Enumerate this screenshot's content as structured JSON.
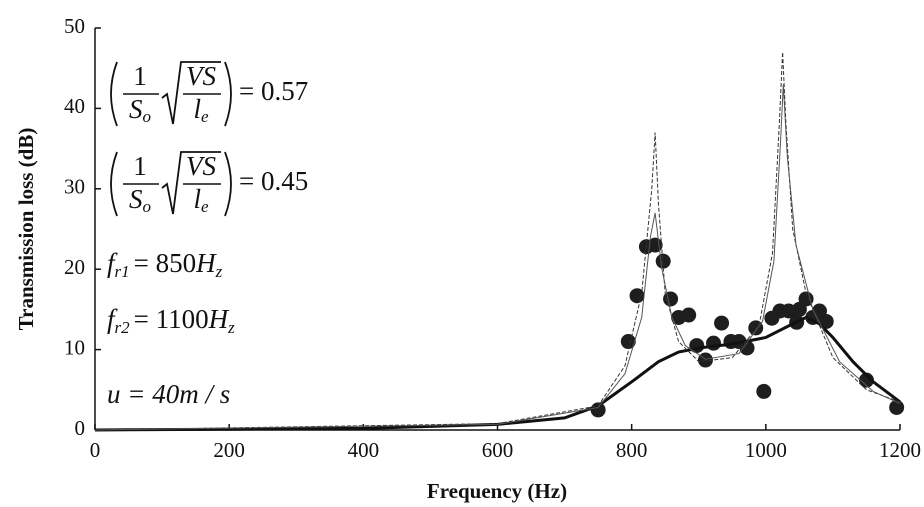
{
  "chart_data": {
    "type": "line",
    "xlabel": "Frequency (Hz)",
    "ylabel": "Transmission loss (dB)",
    "xlim": [
      0,
      1200
    ],
    "xticks": [
      0,
      200,
      400,
      600,
      800,
      1000,
      1200
    ],
    "ylim": [
      0,
      50
    ],
    "yticks": [
      0,
      10,
      20,
      30,
      40,
      50
    ],
    "grid": false,
    "annotations": [
      {
        "numerator": "1",
        "denominator": "S",
        "denominator_sub": "o",
        "root_numerator": "VS",
        "root_denominator": "l",
        "root_denominator_sub": "e",
        "rhs": "= 0.57"
      },
      {
        "numerator": "1",
        "denominator": "S",
        "denominator_sub": "o",
        "root_numerator": "VS",
        "root_denominator": "l",
        "root_denominator_sub": "e",
        "rhs": "= 0.45"
      },
      {
        "symbol": "f",
        "sub": "r1",
        "rhs": "= 850",
        "unit": "H",
        "unit_sub": "z"
      },
      {
        "symbol": "f",
        "sub": "r2",
        "rhs": "= 1100",
        "unit": "H",
        "unit_sub": "z"
      },
      {
        "text": "u = 40m / s"
      }
    ],
    "series": [
      {
        "style": "scatter",
        "color": "#1e1e1e",
        "x": [
          750,
          795,
          808,
          822,
          835,
          847,
          858,
          870,
          885,
          897,
          910,
          922,
          934,
          948,
          960,
          972,
          985,
          997,
          1009,
          1021,
          1034,
          1046,
          1050,
          1060,
          1070,
          1080,
          1090,
          1150,
          1195
        ],
        "values": [
          2.5,
          11,
          16.7,
          22.8,
          23,
          21,
          16.3,
          14,
          14.3,
          10.5,
          8.7,
          10.8,
          13.3,
          11,
          11,
          10.2,
          12.7,
          4.8,
          13.9,
          14.8,
          14.8,
          13.4,
          15,
          16.3,
          14,
          14.8,
          13.5,
          6.2,
          2.8
        ]
      },
      {
        "style": "solid-thick",
        "color": "#111111",
        "x": [
          0,
          200,
          400,
          600,
          700,
          750,
          800,
          840,
          870,
          900,
          950,
          1000,
          1040,
          1060,
          1080,
          1100,
          1130,
          1160,
          1200
        ],
        "values": [
          0,
          0.1,
          0.2,
          0.7,
          1.5,
          3,
          6,
          8.5,
          9.7,
          10.2,
          10.7,
          11.5,
          13.2,
          14,
          13.2,
          11.5,
          8.5,
          6,
          3.5
        ]
      },
      {
        "style": "dashed-thin",
        "color": "#333333",
        "x": [
          0,
          600,
          750,
          790,
          815,
          830,
          835,
          840,
          850,
          870,
          900,
          950,
          990,
          1010,
          1020,
          1025,
          1030,
          1040,
          1060,
          1100,
          1150,
          1200
        ],
        "values": [
          0,
          0.8,
          3,
          8,
          17,
          30,
          37,
          28,
          17,
          11,
          8.5,
          9,
          13,
          22,
          38,
          47,
          38,
          25,
          17,
          9,
          5,
          3.5
        ]
      },
      {
        "style": "solid-thin",
        "color": "#555555",
        "x": [
          0,
          600,
          750,
          790,
          815,
          828,
          835,
          845,
          860,
          880,
          910,
          960,
          995,
          1012,
          1022,
          1026,
          1032,
          1045,
          1070,
          1110,
          1160,
          1200
        ],
        "values": [
          0,
          0.7,
          2.8,
          7,
          14,
          24,
          27,
          20,
          14,
          10.5,
          8.8,
          9.5,
          13.5,
          21,
          36,
          43,
          34,
          23,
          15,
          8.5,
          4.8,
          3.3
        ]
      }
    ]
  }
}
